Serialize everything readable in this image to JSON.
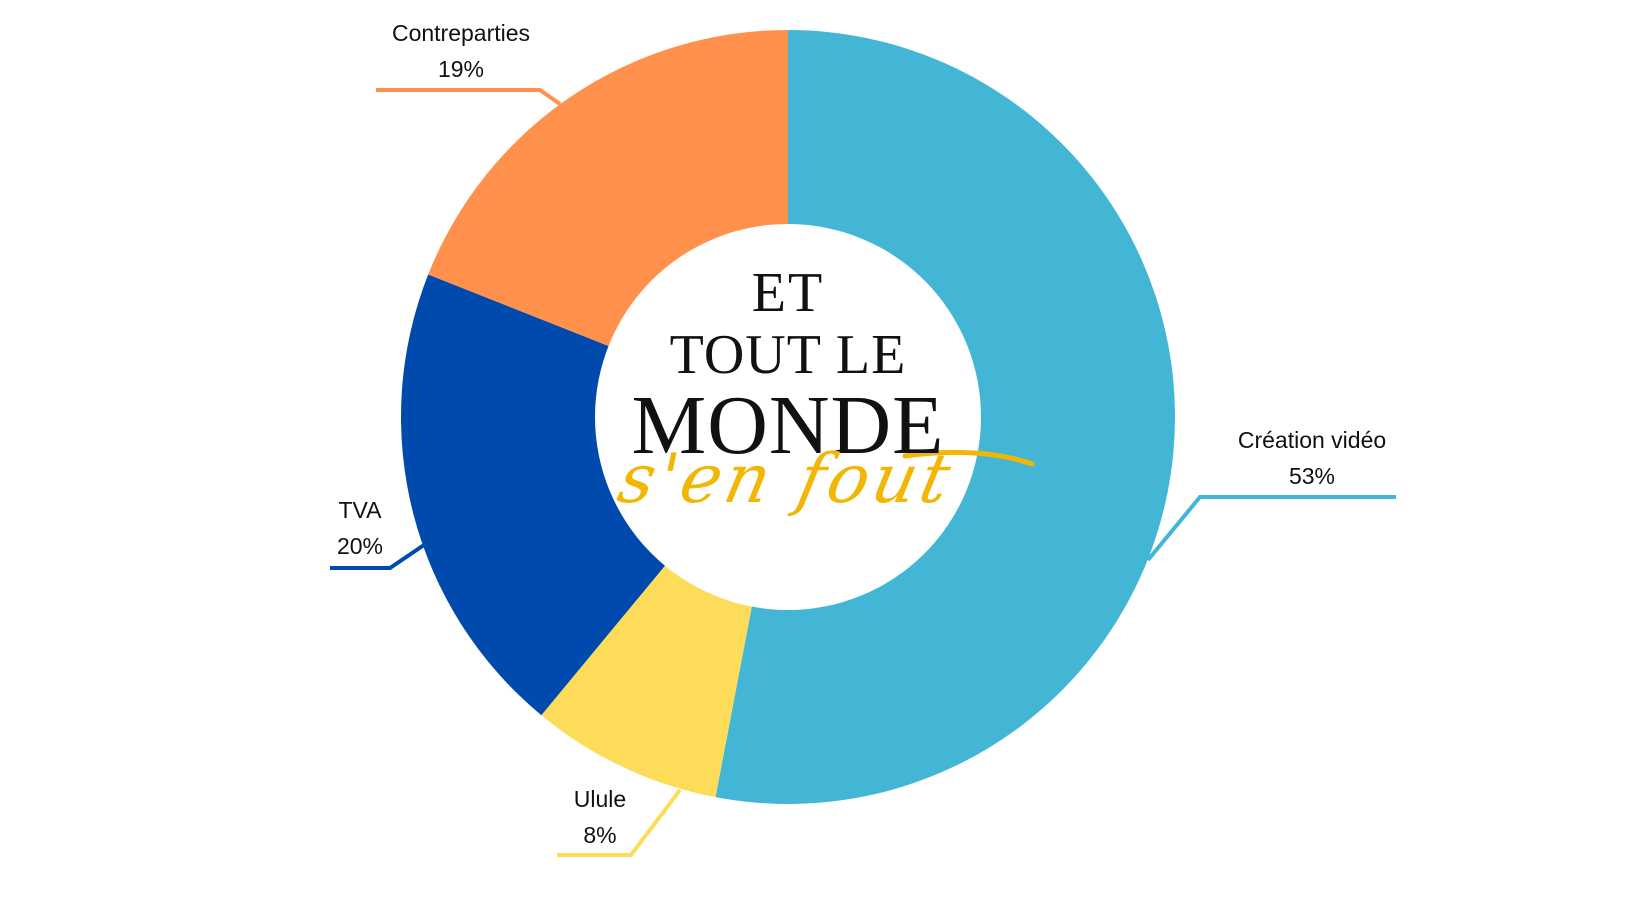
{
  "chart_data": {
    "type": "pie",
    "variant": "donut",
    "title": "",
    "center_title": {
      "line1": "ET",
      "line2": "TOUT LE",
      "line3": "MONDE",
      "script": "s'en fout"
    },
    "categories": [
      "Création vidéo",
      "Ulule",
      "TVA",
      "Contreparties"
    ],
    "values": [
      53,
      8,
      20,
      19
    ],
    "unit": "%",
    "colors": [
      "#43b6d6",
      "#fddc5a",
      "#004aad",
      "#ff914d"
    ],
    "labels": [
      {
        "name": "Création vidéo",
        "value": "53%"
      },
      {
        "name": "Ulule",
        "value": "8%"
      },
      {
        "name": "TVA",
        "value": "20%"
      },
      {
        "name": "Contreparties",
        "value": "19%"
      }
    ],
    "legend": "none (leader-line labels)",
    "start_angle": "12 o'clock, clockwise"
  },
  "accent_script_color": "#f2b705"
}
